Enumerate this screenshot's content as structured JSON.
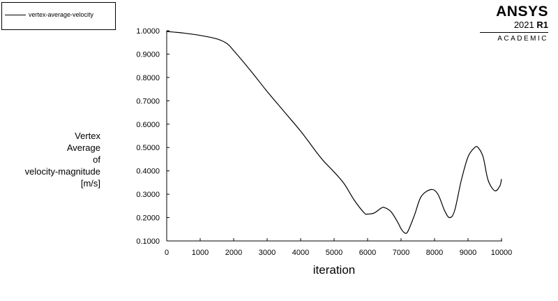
{
  "legend": {
    "label": "vertex-average-velocity"
  },
  "logo": {
    "brand": "ANSYS",
    "year": "2021",
    "release": "R1",
    "edition": "ACADEMIC"
  },
  "chart_data": {
    "type": "line",
    "xlabel": "iteration",
    "ylabel_lines": [
      "Vertex",
      "Average",
      "of",
      "velocity-magnitude",
      "[m/s]"
    ],
    "xlim": [
      0,
      10000
    ],
    "ylim": [
      0.1,
      1.0
    ],
    "x_ticks": [
      "0",
      "1000",
      "2000",
      "3000",
      "4000",
      "5000",
      "6000",
      "7000",
      "8000",
      "9000",
      "10000"
    ],
    "y_ticks": [
      "1.0000",
      "0.9000",
      "0.8000",
      "0.7000",
      "0.6000",
      "0.5000",
      "0.4000",
      "0.3000",
      "0.2000",
      "0.1000"
    ],
    "series": [
      {
        "name": "vertex-average-velocity",
        "x": [
          0,
          500,
          1000,
          1500,
          1800,
          2000,
          2500,
          3000,
          3500,
          4000,
          4500,
          4700,
          5000,
          5300,
          5600,
          5900,
          6000,
          6200,
          6400,
          6500,
          6700,
          6900,
          7000,
          7100,
          7200,
          7400,
          7600,
          7900,
          8100,
          8300,
          8450,
          8600,
          8800,
          9000,
          9200,
          9300,
          9450,
          9600,
          9800,
          9950,
          10000
        ],
        "y": [
          0.997,
          0.99,
          0.98,
          0.965,
          0.945,
          0.915,
          0.83,
          0.74,
          0.655,
          0.57,
          0.475,
          0.44,
          0.395,
          0.345,
          0.275,
          0.22,
          0.215,
          0.22,
          0.24,
          0.243,
          0.225,
          0.18,
          0.152,
          0.135,
          0.14,
          0.21,
          0.29,
          0.32,
          0.3,
          0.23,
          0.2,
          0.23,
          0.36,
          0.46,
          0.5,
          0.5,
          0.46,
          0.36,
          0.315,
          0.335,
          0.365
        ]
      }
    ],
    "grid": false,
    "legend_position": "top-left"
  }
}
